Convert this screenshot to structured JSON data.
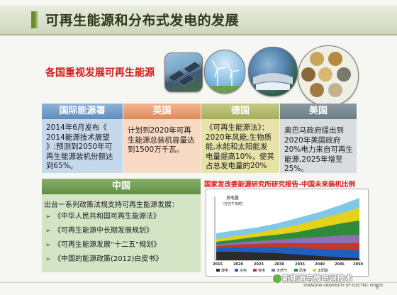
{
  "slide": {
    "title": "可再生能源和分布式发电的发展",
    "subtitle": "各国重视发展可再生能源",
    "page_number": "6"
  },
  "columns": [
    {
      "header": "国际能源署",
      "lines": [
        "2014年6月发布《",
        "2014能源技术展望",
        "》:预测到2050年可",
        "再生能源装机份额达",
        "到65%。"
      ]
    },
    {
      "header": "英国",
      "lines": [
        "计划到2020年可再",
        "生能源总装机容量达",
        "到1500万千瓦。"
      ]
    },
    {
      "header": "德国",
      "lines": [
        "《可再生能源法》：",
        "2020年风能,生物质",
        "能,水能和太阳能发",
        "电量提高10%，使其",
        "占总发电量的20%"
      ]
    },
    {
      "header": "美国",
      "lines": [
        "奥巴马政府提出到",
        "2020年美国政府",
        "20%电力来自可再生",
        "能源,2025年增至",
        "25%。"
      ]
    }
  ],
  "china": {
    "header": "中国",
    "intro": "出台一系列政策法规支持可再生能源发展：",
    "policies": [
      "《中华人民共和国可再生能源法》",
      "《可再生能源中长期发展规划》",
      "《可再生能源发展“十二五”规划》",
      "《中国的能源政策(2012)白皮书》"
    ]
  },
  "chart": {
    "title": "国家发改委能源研究所研究报告-中国未来装机比例",
    "ylabel_line1": "发电量",
    "ylabel_line2": "（万亿千瓦时）",
    "x_ticks": [
      "2015",
      "2020",
      "2025",
      "2030",
      "2035",
      "2040",
      "2045",
      "2050"
    ],
    "legend": [
      "煤电",
      "水电",
      "核电",
      "天然气",
      "风电",
      "太阳能"
    ],
    "colors": {
      "coal": "#2b2b2b",
      "hydro": "#1f5fbf",
      "nuclear": "#c0392b",
      "gas": "#8e6fb0",
      "wind": "#2e8b3a",
      "solar": "#e6d21a",
      "other": "#7fc8e6"
    }
  },
  "footer": {
    "watermark": "新能源与微电网技术",
    "university": "SHANGHAI UNIVERSITY OF ELECTRIC POWER"
  }
}
